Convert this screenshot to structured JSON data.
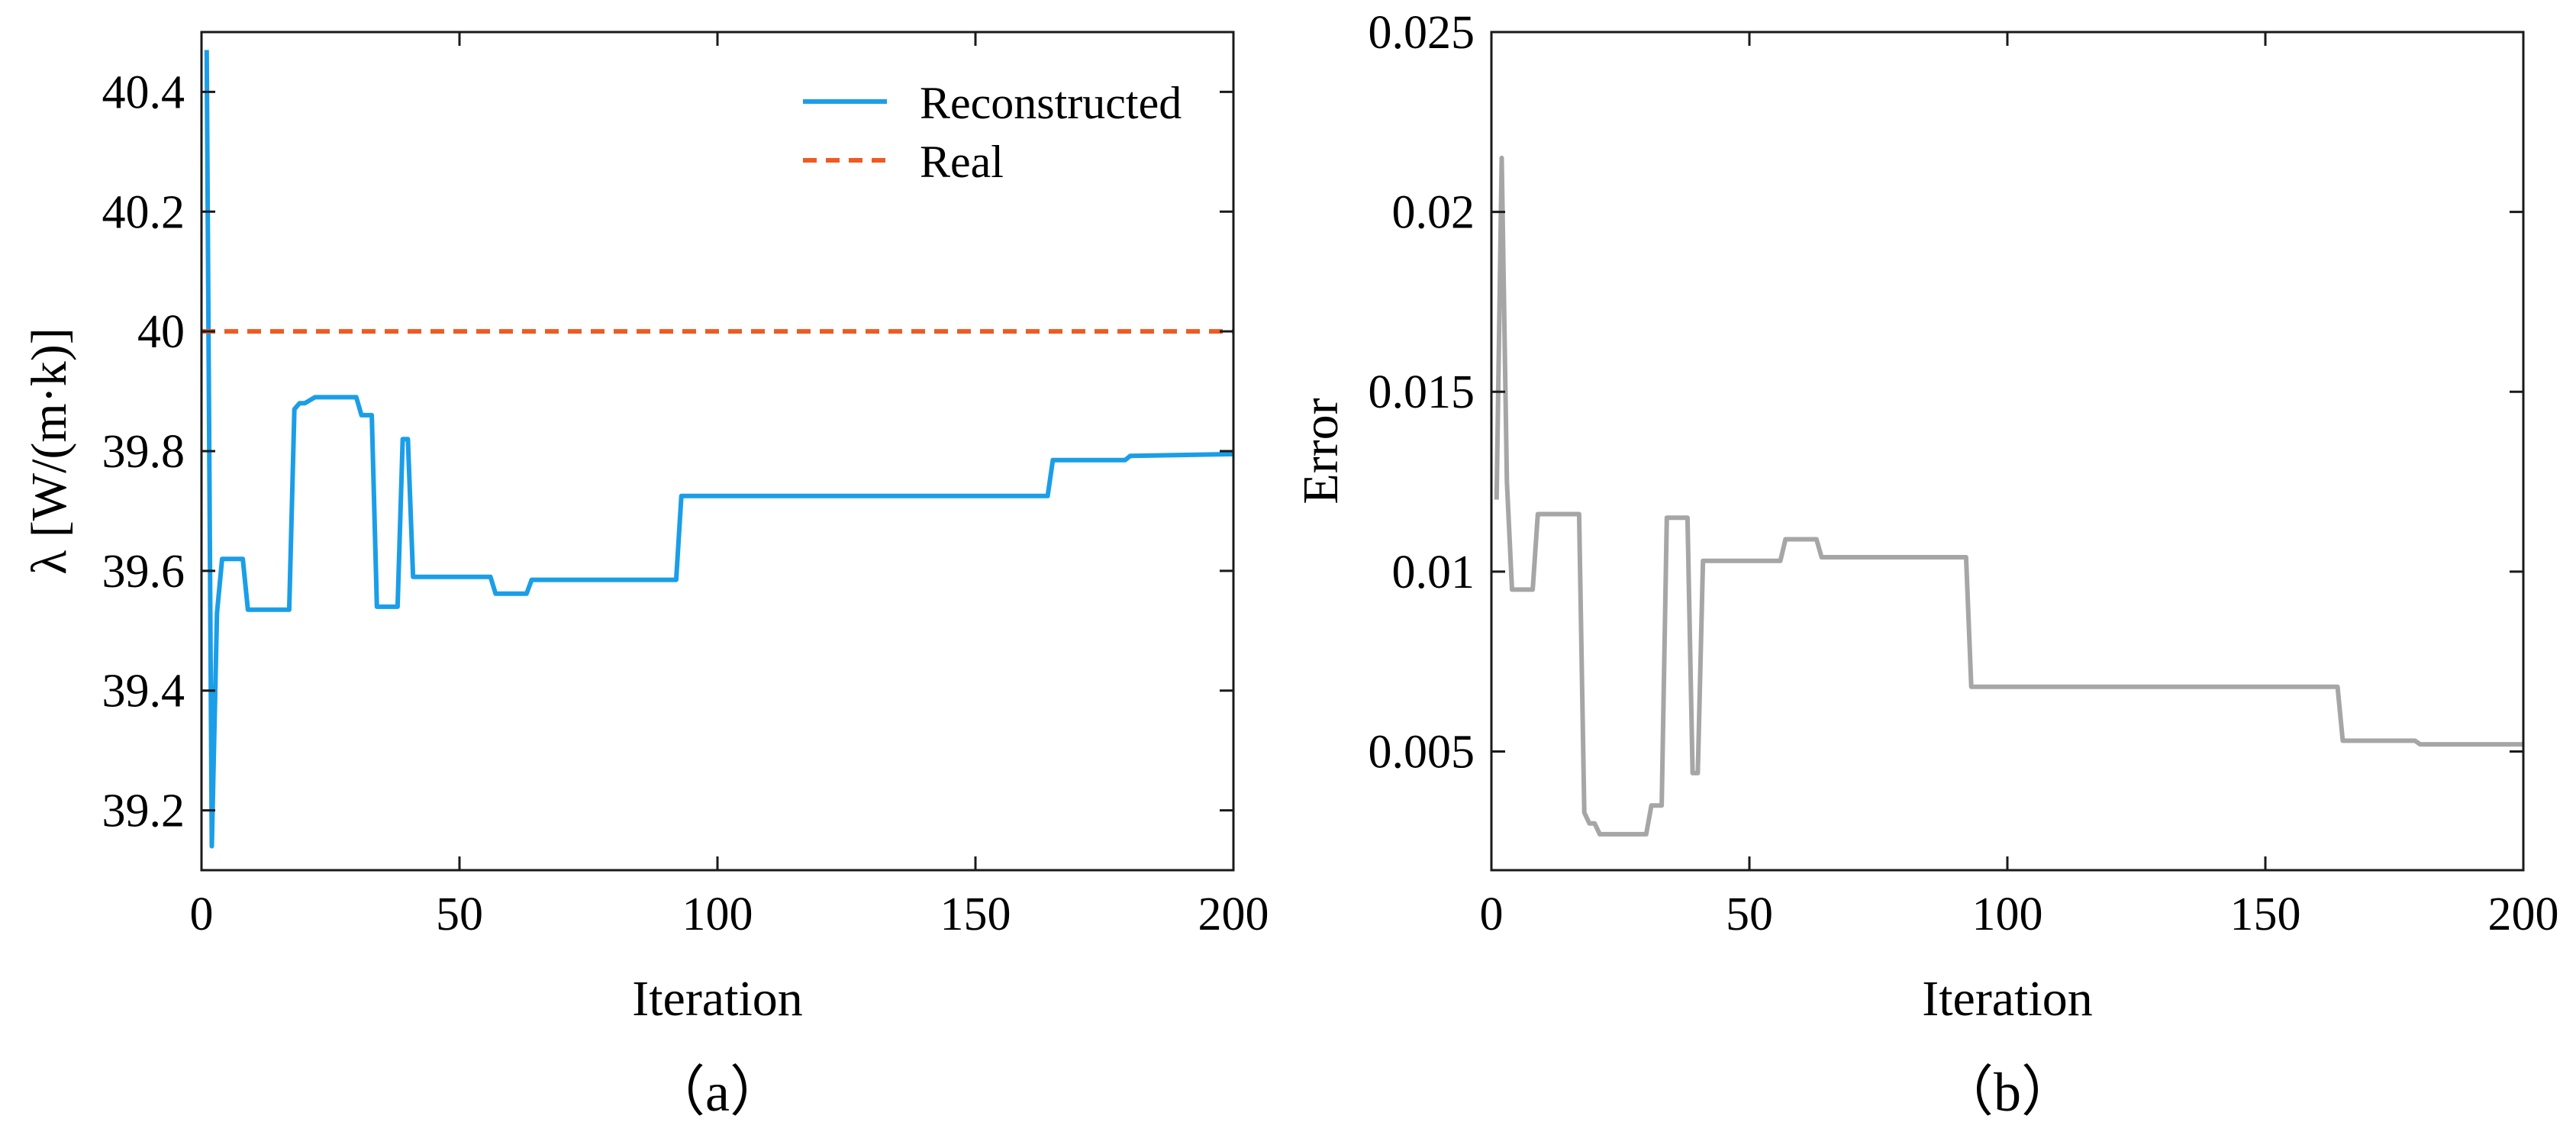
{
  "chart_data": [
    {
      "type": "line",
      "panel_label": "（a）",
      "xlabel": "Iteration",
      "ylabel": "λ [W/(m·k)]",
      "xlim": [
        0,
        200
      ],
      "ylim": [
        39.1,
        40.5
      ],
      "xticks": [
        "0",
        "50",
        "100",
        "150",
        "200"
      ],
      "yticks": [
        "39.2",
        "39.4",
        "39.6",
        "39.8",
        "40",
        "40.2",
        "40.4"
      ],
      "grid": false,
      "legend_position": "top-right",
      "series": [
        {
          "name": "Reconstructed",
          "color": "#1a9ee8",
          "style": "solid",
          "x": [
            1,
            2,
            3,
            4,
            8,
            9,
            17,
            18,
            19,
            20,
            21,
            22,
            30,
            31,
            33,
            34,
            37,
            38,
            39,
            40,
            41,
            42,
            56,
            57,
            63,
            64,
            92,
            93,
            164,
            165,
            179,
            180,
            200
          ],
          "y": [
            40.47,
            39.14,
            39.53,
            39.62,
            39.62,
            39.535,
            39.535,
            39.87,
            39.88,
            39.88,
            39.885,
            39.89,
            39.89,
            39.86,
            39.86,
            39.54,
            39.54,
            39.54,
            39.82,
            39.82,
            39.59,
            39.59,
            39.59,
            39.562,
            39.562,
            39.585,
            39.585,
            39.725,
            39.725,
            39.785,
            39.785,
            39.792,
            39.795
          ]
        },
        {
          "name": "Real",
          "color": "#f05a22",
          "style": "dashed",
          "x": [
            0,
            200
          ],
          "y": [
            40,
            40
          ]
        }
      ]
    },
    {
      "type": "line",
      "panel_label": "（b）",
      "xlabel": "Iteration",
      "ylabel": "Error",
      "xlim": [
        0,
        200
      ],
      "ylim": [
        0.0017,
        0.025
      ],
      "xticks": [
        "0",
        "50",
        "100",
        "150",
        "200"
      ],
      "yticks": [
        "0.005",
        "0.01",
        "0.015",
        "0.02",
        "0.025"
      ],
      "grid": false,
      "series": [
        {
          "name": "Error",
          "color": "#a6a6a6",
          "style": "solid",
          "x": [
            1,
            2,
            3,
            4,
            8,
            9,
            17,
            18,
            19,
            20,
            21,
            30,
            31,
            33,
            34,
            37,
            38,
            39,
            40,
            41,
            42,
            56,
            57,
            63,
            64,
            92,
            93,
            164,
            165,
            179,
            180,
            200
          ],
          "y": [
            0.012,
            0.0215,
            0.0125,
            0.0095,
            0.0095,
            0.0116,
            0.0116,
            0.0033,
            0.003,
            0.003,
            0.0027,
            0.0027,
            0.0035,
            0.0035,
            0.0115,
            0.0115,
            0.0115,
            0.0044,
            0.0044,
            0.0103,
            0.0103,
            0.0103,
            0.0109,
            0.0109,
            0.0104,
            0.0104,
            0.0068,
            0.0068,
            0.0053,
            0.0053,
            0.0052,
            0.0052
          ]
        }
      ]
    }
  ]
}
